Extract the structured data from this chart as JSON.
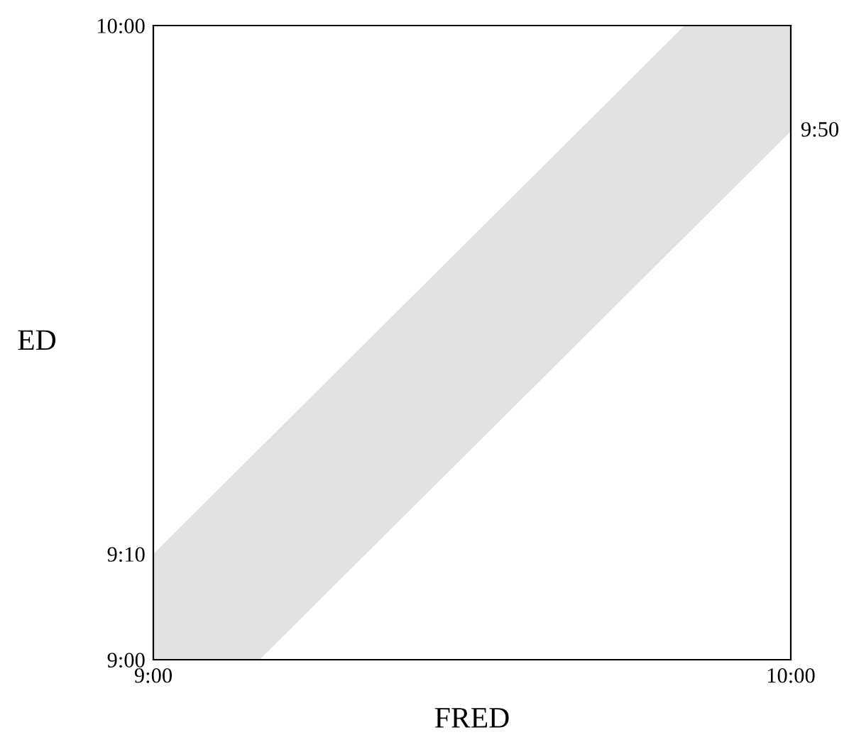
{
  "chart_data": {
    "type": "area",
    "xlabel": "FRED",
    "ylabel": "ED",
    "x": [
      9,
      9.1667,
      9.8333,
      10
    ],
    "series": [
      {
        "color": "#e2e2e2",
        "values": [
          null,
          null,
          null,
          null
        ],
        "lower": [
          9,
          9,
          9.6667,
          9.8333
        ],
        "upper": [
          9.1667,
          9.3333,
          10,
          10
        ]
      }
    ],
    "xlim": [
      9,
      10
    ],
    "ylim": [
      9,
      10
    ],
    "xticks": [
      {
        "value": 9,
        "label": "9:00"
      },
      {
        "value": 10,
        "label": "10:00"
      }
    ],
    "yticks": [
      {
        "value": 9,
        "label": "9:00"
      },
      {
        "value": 9.1667,
        "label": "9:10"
      },
      {
        "value": 10,
        "label": "10:00"
      }
    ],
    "annotations": [
      {
        "text": "9:50",
        "x": 10,
        "y": 9.8333
      }
    ],
    "grid": false,
    "legend": false
  }
}
